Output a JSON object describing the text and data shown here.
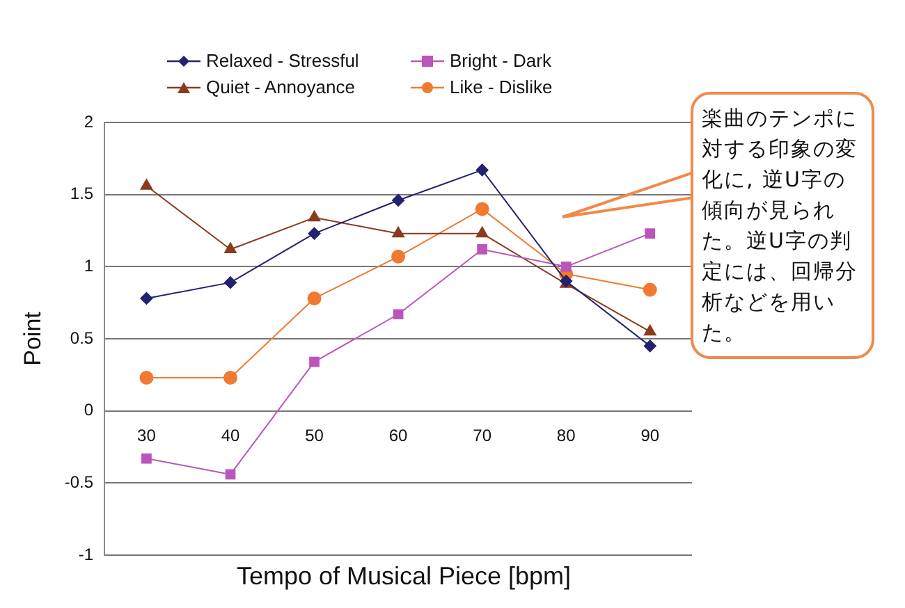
{
  "chart_data": {
    "type": "line",
    "xlabel": "Tempo of Musical Piece [bpm]",
    "ylabel": "Point",
    "categories": [
      "30",
      "40",
      "50",
      "60",
      "70",
      "80",
      "90"
    ],
    "series": [
      {
        "name": "Relaxed - Stressful",
        "color": "#22226e",
        "marker": "diamond",
        "values": [
          0.78,
          0.89,
          1.23,
          1.46,
          1.67,
          0.9,
          0.45
        ]
      },
      {
        "name": "Bright - Dark",
        "color": "#bb55bb",
        "marker": "square",
        "values": [
          -0.33,
          -0.44,
          0.34,
          0.67,
          1.12,
          1.0,
          1.23
        ]
      },
      {
        "name": "Quiet - Annoyance",
        "color": "#8b3a1e",
        "marker": "triangle",
        "values": [
          1.56,
          1.12,
          1.34,
          1.23,
          1.23,
          0.88,
          0.55
        ]
      },
      {
        "name": "Like - Dislike",
        "color": "#f07a30",
        "marker": "circle",
        "values": [
          0.23,
          0.23,
          0.78,
          1.07,
          1.4,
          0.95,
          0.84
        ]
      }
    ],
    "ylim": [
      -1,
      2
    ],
    "yticks": [
      -1,
      -0.5,
      0,
      0.5,
      1,
      1.5,
      2
    ],
    "grid": "y",
    "legend": "top",
    "annotations": [
      "楽曲のテンポに対する印象の変化に, 逆U字の傾向が見られた。逆U字の判定には、回帰分析などを用いた。"
    ]
  }
}
